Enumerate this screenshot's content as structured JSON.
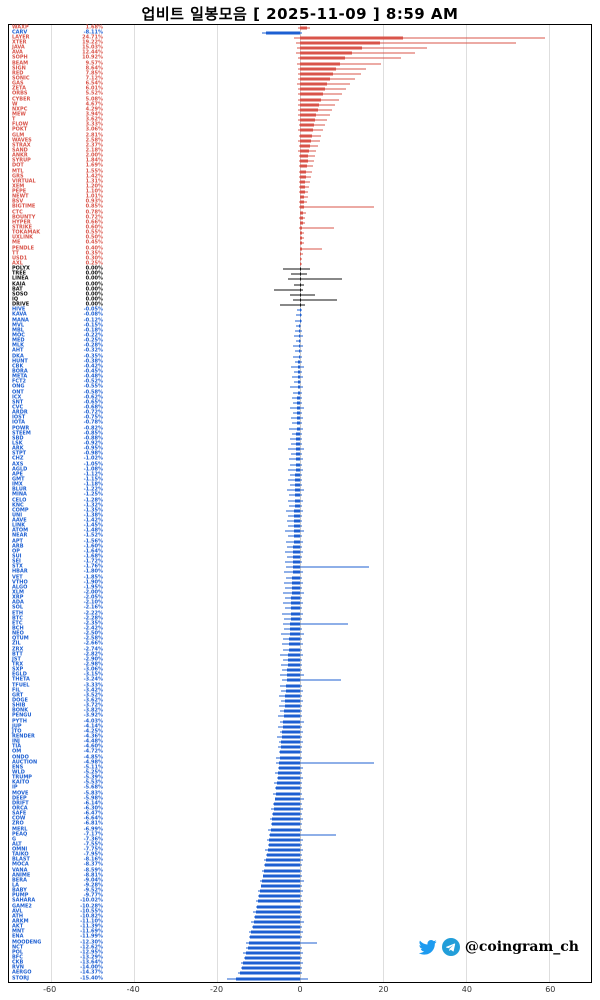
{
  "title": "업비트 일봉모음 [ 2025-11-09 ]  8:59 AM",
  "watermark": {
    "handle": "@coingram_ch",
    "icons": [
      "twitter-bird-icon",
      "telegram-plane-icon"
    ]
  },
  "colors": {
    "positive": "#d9544a",
    "negative": "#1d5fd2",
    "neutral": "#111111",
    "grid": "#dedede",
    "frame": "#000000",
    "twitter": "#1d9bf0",
    "telegram": "#229ed9"
  },
  "x_axis": {
    "min": -70,
    "max": 70,
    "ticks": [
      -60,
      -40,
      -20,
      0,
      20,
      40,
      60
    ]
  },
  "chart_data": {
    "type": "bar",
    "subtype": "horizontal-daily-candles",
    "description": "Upbit KRW market daily change per coin. body = 0..change_pct, wick = low_pct..high_pct. Red=up, black=flat, blue=down.",
    "columns": [
      "ticker",
      "change_pct",
      "low_pct",
      "high_pct"
    ],
    "rows": [
      [
        "WAXP",
        1.68,
        -0.6,
        2.4
      ],
      [
        "CARV",
        -8.11,
        -9.2,
        0.4
      ],
      [
        "LAYER",
        24.71,
        -1.5,
        59.0
      ],
      [
        "XTER",
        19.22,
        -1.0,
        52.0
      ],
      [
        "JAVA",
        15.03,
        -0.8,
        30.5
      ],
      [
        "AVA",
        12.44,
        -0.9,
        27.6
      ],
      [
        "SOPH",
        10.92,
        -0.6,
        24.2
      ],
      [
        "BEAM",
        9.57,
        -0.8,
        19.6
      ],
      [
        "SIGN",
        8.64,
        -0.5,
        16.0
      ],
      [
        "RED",
        7.85,
        -0.6,
        14.6
      ],
      [
        "SONIC",
        7.12,
        -0.5,
        13.3
      ],
      [
        "GAS",
        6.54,
        -0.7,
        12.1
      ],
      [
        "ZETA",
        6.01,
        -0.4,
        11.0
      ],
      [
        "ORBS",
        5.52,
        -0.5,
        10.0
      ],
      [
        "CYBER",
        5.08,
        -0.6,
        9.3
      ],
      [
        "W",
        4.67,
        -0.4,
        8.5
      ],
      [
        "NXPC",
        4.29,
        -0.5,
        7.8
      ],
      [
        "MEW",
        3.94,
        -0.4,
        7.2
      ],
      [
        "T",
        3.62,
        -0.5,
        6.6
      ],
      [
        "FLOW",
        3.33,
        -0.3,
        6.0
      ],
      [
        "POKT",
        3.06,
        -0.4,
        5.6
      ],
      [
        "GLM",
        2.81,
        -0.3,
        5.1
      ],
      [
        "WAVES",
        2.58,
        -0.4,
        4.7
      ],
      [
        "STRAX",
        2.37,
        -0.3,
        4.3
      ],
      [
        "SAND",
        2.18,
        -0.4,
        3.9
      ],
      [
        "ANKR",
        2.0,
        -0.3,
        3.6
      ],
      [
        "SYRUP",
        1.84,
        -0.3,
        3.3
      ],
      [
        "DOT",
        1.69,
        -0.2,
        3.1
      ],
      [
        "MTL",
        1.55,
        -0.2,
        2.8
      ],
      [
        "GRS",
        1.42,
        -0.3,
        2.6
      ],
      [
        "VIRTUAL",
        1.31,
        -0.2,
        2.4
      ],
      [
        "XEM",
        1.2,
        -0.2,
        2.2
      ],
      [
        "PEPE",
        1.1,
        -0.2,
        2.0
      ],
      [
        "NEWT",
        1.01,
        -0.1,
        1.9
      ],
      [
        "BSV",
        0.93,
        -0.2,
        1.7
      ],
      [
        "BIGTIME",
        0.85,
        -0.3,
        17.8
      ],
      [
        "CTC",
        0.78,
        -0.1,
        1.5
      ],
      [
        "BOUNTY",
        0.72,
        -0.2,
        1.3
      ],
      [
        "HYPER",
        0.66,
        -0.1,
        1.2
      ],
      [
        "STRIKE",
        0.6,
        -0.2,
        8.2
      ],
      [
        "TOKAMAK",
        0.55,
        -0.1,
        1.0
      ],
      [
        "UXLINK",
        0.5,
        -0.1,
        0.9
      ],
      [
        "ME",
        0.45,
        -0.1,
        0.9
      ],
      [
        "PENDLE",
        0.4,
        -0.1,
        5.4
      ],
      [
        "TT",
        0.35,
        -0.1,
        0.7
      ],
      [
        "USD1",
        0.3,
        -0.05,
        0.6
      ],
      [
        "AXL",
        0.25,
        -0.05,
        0.5
      ],
      [
        "POLYX",
        0.0,
        -4.1,
        2.3
      ],
      [
        "TREE",
        0.0,
        -2.2,
        1.8
      ],
      [
        "LINEA",
        0.0,
        -3.0,
        10.2
      ],
      [
        "KAIA",
        0.0,
        -1.5,
        1.0
      ],
      [
        "BAT",
        0.0,
        -6.2,
        0.8
      ],
      [
        "SOSO",
        0.0,
        -2.4,
        3.5
      ],
      [
        "IQ",
        0.0,
        -1.8,
        9.0
      ],
      [
        "DRIVE",
        0.0,
        -4.8,
        1.2
      ],
      [
        "HIVE",
        -0.05,
        -0.8,
        0.4
      ],
      [
        "KAVA",
        -0.08,
        -1.0,
        0.5
      ],
      [
        "MANA",
        -0.12,
        -1.2,
        0.6
      ],
      [
        "MVL",
        -0.15,
        -0.9,
        0.3
      ],
      [
        "MBL",
        -0.18,
        -1.1,
        0.4
      ],
      [
        "MOC",
        -0.22,
        -1.4,
        0.7
      ],
      [
        "MED",
        -0.25,
        -1.0,
        0.3
      ],
      [
        "MLK",
        -0.28,
        -1.6,
        0.8
      ],
      [
        "AHT",
        -0.32,
        -1.2,
        0.4
      ],
      [
        "DKA",
        -0.35,
        -1.8,
        0.5
      ],
      [
        "HUNT",
        -0.38,
        -1.3,
        0.6
      ],
      [
        "CBK",
        -0.42,
        -2.1,
        0.9
      ],
      [
        "BORA",
        -0.45,
        -1.5,
        0.4
      ],
      [
        "META",
        -0.48,
        -1.9,
        0.7
      ],
      [
        "FCT2",
        -0.52,
        -1.4,
        0.3
      ],
      [
        "ONG",
        -0.55,
        -2.3,
        0.8
      ],
      [
        "ONT",
        -0.58,
        -1.6,
        0.5
      ],
      [
        "ICX",
        -0.62,
        -2.0,
        0.6
      ],
      [
        "SNT",
        -0.65,
        -1.7,
        0.4
      ],
      [
        "CVC",
        -0.68,
        -2.5,
        0.9
      ],
      [
        "ARDR",
        -0.72,
        -1.8,
        0.5
      ],
      [
        "IOST",
        -0.75,
        -2.2,
        0.7
      ],
      [
        "IOTA",
        -0.78,
        -1.9,
        0.4
      ],
      [
        "POWR",
        -0.82,
        -2.6,
        0.8
      ],
      [
        "STEEM",
        -0.85,
        -2.0,
        0.5
      ],
      [
        "SBD",
        -0.88,
        -2.4,
        0.6
      ],
      [
        "LSK",
        -0.92,
        -2.1,
        0.4
      ],
      [
        "ARK",
        -0.95,
        -2.8,
        0.9
      ],
      [
        "STPT",
        -0.98,
        -2.2,
        0.5
      ],
      [
        "CHZ",
        -1.02,
        -2.6,
        0.7
      ],
      [
        "AXS",
        -1.05,
        -2.3,
        0.4
      ],
      [
        "AGLD",
        -1.08,
        -3.0,
        0.8
      ],
      [
        "APE",
        -1.12,
        -2.5,
        0.5
      ],
      [
        "GMT",
        -1.15,
        -2.9,
        0.6
      ],
      [
        "IMX",
        -1.18,
        -2.4,
        0.4
      ],
      [
        "BLUR",
        -1.22,
        -3.2,
        0.9
      ],
      [
        "MINA",
        -1.25,
        -2.6,
        0.5
      ],
      [
        "CELO",
        -1.28,
        -3.0,
        0.7
      ],
      [
        "KNC",
        -1.32,
        -2.7,
        0.4
      ],
      [
        "COMP",
        -1.35,
        -3.4,
        0.8
      ],
      [
        "UNI",
        -1.38,
        -2.8,
        0.5
      ],
      [
        "AAVE",
        -1.42,
        -3.1,
        0.6
      ],
      [
        "LINK",
        -1.45,
        -2.9,
        0.4
      ],
      [
        "ATOM",
        -1.48,
        -3.5,
        0.9
      ],
      [
        "NEAR",
        -1.52,
        -3.0,
        0.5
      ],
      [
        "APT",
        -1.56,
        -3.3,
        0.7
      ],
      [
        "ARB",
        -1.6,
        -3.1,
        0.4
      ],
      [
        "OP",
        -1.64,
        -3.7,
        0.8
      ],
      [
        "SUI",
        -1.68,
        -3.2,
        0.5
      ],
      [
        "SEI",
        -1.72,
        -3.6,
        0.6
      ],
      [
        "STX",
        -1.76,
        -3.3,
        16.5
      ],
      [
        "HBAR",
        -1.8,
        -3.9,
        0.8
      ],
      [
        "VET",
        -1.85,
        -3.4,
        0.5
      ],
      [
        "VTHO",
        -1.9,
        -3.8,
        0.7
      ],
      [
        "ALGO",
        -1.95,
        -3.5,
        0.4
      ],
      [
        "XLM",
        -2.0,
        -4.1,
        0.9
      ],
      [
        "XRP",
        -2.05,
        -3.6,
        0.5
      ],
      [
        "ADA",
        -2.1,
        -4.0,
        0.7
      ],
      [
        "SOL",
        -2.16,
        -3.7,
        0.4
      ],
      [
        "ETH",
        -2.22,
        -4.3,
        0.8
      ],
      [
        "BTC",
        -2.28,
        -3.8,
        0.5
      ],
      [
        "ETC",
        -2.35,
        -4.2,
        11.5
      ],
      [
        "BCH",
        -2.42,
        -3.9,
        0.6
      ],
      [
        "NEO",
        -2.5,
        -4.5,
        0.9
      ],
      [
        "QTUM",
        -2.58,
        -4.0,
        0.5
      ],
      [
        "ZIL",
        -2.66,
        -4.4,
        0.7
      ],
      [
        "ZRX",
        -2.74,
        -4.1,
        0.4
      ],
      [
        "BTT",
        -2.82,
        -4.7,
        0.8
      ],
      [
        "JST",
        -2.9,
        -4.2,
        0.5
      ],
      [
        "TRX",
        -2.98,
        -4.6,
        0.6
      ],
      [
        "SXP",
        -3.06,
        -4.3,
        0.4
      ],
      [
        "EGLD",
        -3.15,
        -4.9,
        0.9
      ],
      [
        "THETA",
        -3.24,
        -4.4,
        9.8
      ],
      [
        "TFUEL",
        -3.33,
        -4.8,
        0.5
      ],
      [
        "FIL",
        -3.42,
        -4.5,
        0.7
      ],
      [
        "GRT",
        -3.52,
        -5.1,
        0.4
      ],
      [
        "DOGE",
        -3.62,
        -4.6,
        0.8
      ],
      [
        "SHIB",
        -3.72,
        -5.0,
        0.5
      ],
      [
        "BONK",
        -3.82,
        -4.7,
        0.6
      ],
      [
        "PENGU",
        -3.92,
        -5.3,
        0.4
      ],
      [
        "PYTH",
        -4.03,
        -4.8,
        0.9
      ],
      [
        "JUP",
        -4.14,
        -5.2,
        0.5
      ],
      [
        "JTO",
        -4.25,
        -4.9,
        0.7
      ],
      [
        "RENDER",
        -4.36,
        -5.5,
        0.4
      ],
      [
        "INJ",
        -4.48,
        -5.0,
        0.8
      ],
      [
        "TIA",
        -4.6,
        -5.4,
        0.5
      ],
      [
        "OM",
        -4.72,
        -5.1,
        0.6
      ],
      [
        "ONDO",
        -4.85,
        -5.7,
        0.4
      ],
      [
        "AUCTION",
        -4.98,
        -5.8,
        17.8
      ],
      [
        "ENS",
        -5.11,
        -5.4,
        0.7
      ],
      [
        "WLD",
        -5.25,
        -6.0,
        0.4
      ],
      [
        "TRUMP",
        -5.39,
        -5.6,
        0.8
      ],
      [
        "KAITO",
        -5.53,
        -6.2,
        0.5
      ],
      [
        "IP",
        -5.68,
        -5.9,
        0.6
      ],
      [
        "MOVE",
        -5.83,
        -6.4,
        0.4
      ],
      [
        "DEEP",
        -5.98,
        -6.1,
        0.9
      ],
      [
        "DRIFT",
        -6.14,
        -6.6,
        0.5
      ],
      [
        "ORCA",
        -6.3,
        -6.9,
        0.7
      ],
      [
        "SAFE",
        -6.47,
        -6.8,
        0.4
      ],
      [
        "COW",
        -6.64,
        -7.3,
        0.8
      ],
      [
        "ZRO",
        -6.81,
        -7.0,
        0.5
      ],
      [
        "MERL",
        -6.99,
        -7.6,
        0.6
      ],
      [
        "PEAQ",
        -7.17,
        -7.4,
        8.6
      ],
      [
        "G",
        -7.36,
        -8.0,
        0.8
      ],
      [
        "ALT",
        -7.55,
        -7.8,
        0.5
      ],
      [
        "OMNI",
        -7.75,
        -8.3,
        0.7
      ],
      [
        "TAIKO",
        -7.95,
        -8.2,
        0.4
      ],
      [
        "BLAST",
        -8.16,
        -8.7,
        0.8
      ],
      [
        "MOCA",
        -8.37,
        -8.6,
        0.5
      ],
      [
        "VANA",
        -8.59,
        -9.2,
        0.6
      ],
      [
        "ANIME",
        -8.81,
        -9.0,
        0.4
      ],
      [
        "BERA",
        -9.04,
        -9.6,
        0.9
      ],
      [
        "LA",
        -9.28,
        -9.5,
        0.5
      ],
      [
        "BABY",
        -9.52,
        -10.1,
        0.7
      ],
      [
        "PUMP",
        -9.77,
        -10.0,
        0.4
      ],
      [
        "SAHARA",
        -10.02,
        -10.6,
        0.8
      ],
      [
        "GAME2",
        -10.28,
        -10.5,
        0.5
      ],
      [
        "AVL",
        -10.55,
        -11.2,
        0.6
      ],
      [
        "ATH",
        -10.82,
        -11.0,
        0.4
      ],
      [
        "ARKM",
        -11.1,
        -11.7,
        0.9
      ],
      [
        "AKT",
        -11.39,
        -11.6,
        0.5
      ],
      [
        "MNT",
        -11.69,
        -12.3,
        0.7
      ],
      [
        "ENA",
        -11.99,
        -12.2,
        0.4
      ],
      [
        "MOODENG",
        -12.3,
        -13.0,
        4.2
      ],
      [
        "NCT",
        -12.62,
        -12.9,
        0.5
      ],
      [
        "POL",
        -12.95,
        -13.6,
        0.7
      ],
      [
        "BFC",
        -13.29,
        -13.5,
        0.4
      ],
      [
        "CKB",
        -13.64,
        -14.3,
        0.8
      ],
      [
        "RVN",
        -14.0,
        -14.2,
        0.5
      ],
      [
        "AERGO",
        -14.37,
        -15.0,
        0.6
      ],
      [
        "STORJ",
        -15.4,
        -17.5,
        2.0
      ]
    ]
  }
}
